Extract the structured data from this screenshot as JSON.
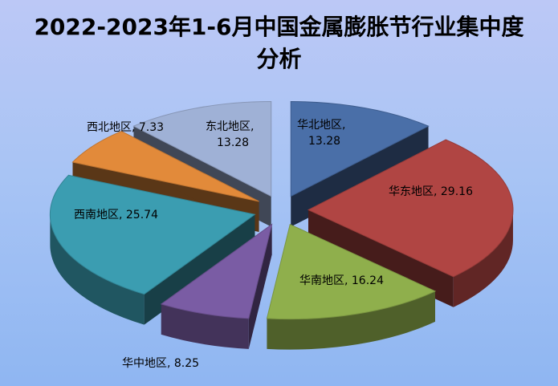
{
  "chart_data": {
    "type": "pie",
    "title": "2022-2023年1-6月中国金属膨胀节行业集中度分析",
    "slices": [
      {
        "name": "华北地区",
        "value": 13.28,
        "color": "#4a6fa8"
      },
      {
        "name": "华东地区",
        "value": 29.16,
        "color": "#b04543"
      },
      {
        "name": "华南地区",
        "value": 16.24,
        "color": "#8faf4c"
      },
      {
        "name": "华中地区",
        "value": 8.25,
        "color": "#7a5ca4"
      },
      {
        "name": "西南地区",
        "value": 25.74,
        "color": "#3b9db1"
      },
      {
        "name": "西北地区",
        "value": 7.33,
        "color": "#e28a3a"
      },
      {
        "name": "东北地区",
        "value": 13.28,
        "color": "#9fb1d6"
      }
    ],
    "data_labels": [
      {
        "text": "华北地区,\n13.28"
      },
      {
        "text": "华东地区, 29.16"
      },
      {
        "text": "华南地区, 16.24"
      },
      {
        "text": "华中地区, 8.25"
      },
      {
        "text": "西南地区, 25.74"
      },
      {
        "text": "西北地区, 7.33"
      },
      {
        "text": "东北地区,\n13.28"
      }
    ],
    "legend": "none"
  }
}
